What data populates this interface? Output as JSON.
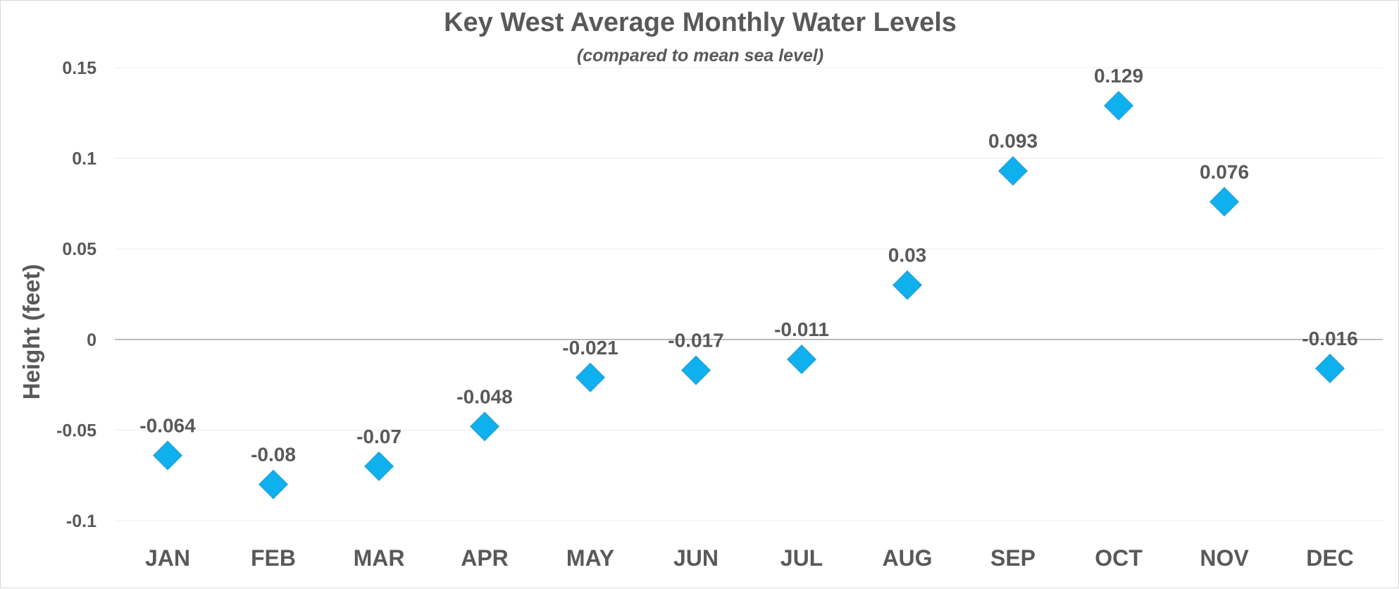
{
  "chart_data": {
    "type": "scatter",
    "title": "Key West Average Monthly Water Levels",
    "subtitle": "(compared to mean sea level)",
    "xlabel": "",
    "ylabel": "Height (feet)",
    "categories": [
      "JAN",
      "FEB",
      "MAR",
      "APR",
      "MAY",
      "JUN",
      "JUL",
      "AUG",
      "SEP",
      "OCT",
      "NOV",
      "DEC"
    ],
    "values": [
      -0.064,
      -0.08,
      -0.07,
      -0.048,
      -0.021,
      -0.017,
      -0.011,
      0.03,
      0.093,
      0.129,
      0.076,
      -0.016
    ],
    "ylim": [
      -0.1,
      0.15
    ],
    "yticks": [
      0.15,
      0.1,
      0.05,
      0,
      -0.05,
      -0.1
    ],
    "ytick_labels": [
      "0.15",
      "0.1",
      "0.05",
      "0",
      "-0.05",
      "-0.1"
    ],
    "data_labels": [
      "-0.064",
      "-0.08",
      "-0.07",
      "-0.048",
      "-0.021",
      "-0.017",
      "-0.011",
      "0.03",
      "0.093",
      "0.129",
      "0.076",
      "-0.016"
    ],
    "marker": "diamond",
    "grid": true,
    "legend": "none",
    "colors": {
      "marker": "#0fb0ee",
      "marker_edge": "#27a3d9",
      "text": "#595959",
      "grid": "#ececec",
      "zero_line": "#a6a6a6",
      "frame": "#d9d9d9"
    }
  }
}
